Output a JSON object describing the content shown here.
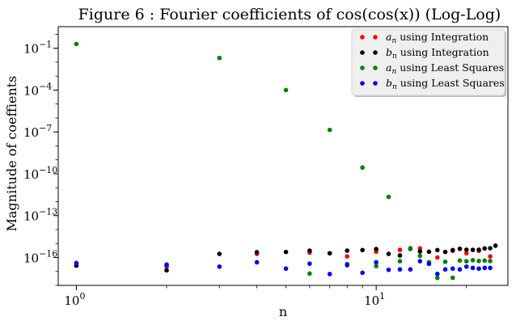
{
  "chart_data": {
    "type": "scatter",
    "title": "Figure 6 : Fourier coefficients of cos(cos(x)) (Log-Log)",
    "xlabel": "n",
    "ylabel": "Magnitude of coeffients",
    "xscale": "log",
    "yscale": "log",
    "xlim": [
      0.87,
      27.5
    ],
    "ylim": [
      1e-18,
      3.5
    ],
    "grid": false,
    "legend_position": "top-right",
    "x_ticks": [
      {
        "value": 1,
        "base": "10",
        "exp": "0"
      },
      {
        "value": 10,
        "base": "10",
        "exp": "1"
      }
    ],
    "y_ticks": [
      {
        "value": 1e-16,
        "base": "10",
        "exp": "−16"
      },
      {
        "value": 1e-13,
        "base": "10",
        "exp": "−13"
      },
      {
        "value": 1e-10,
        "base": "10",
        "exp": "−10"
      },
      {
        "value": 1e-07,
        "base": "10",
        "exp": "−7"
      },
      {
        "value": 0.0001,
        "base": "10",
        "exp": "−4"
      },
      {
        "value": 0.1,
        "base": "10",
        "exp": "−1"
      }
    ],
    "series": [
      {
        "name": "a_n using Integration",
        "legend_var": "a",
        "legend_sub": "n",
        "legend_suffix": " using Integration",
        "color": "#ff0000",
        "x": [
          1,
          2,
          4,
          6,
          8,
          10,
          12,
          14,
          16,
          18,
          20,
          22,
          24
        ],
        "y": [
          2.6e-17,
          2.2e-17,
          1.8e-16,
          2.2e-16,
          1.2e-16,
          2.6e-16,
          3.5e-16,
          4.5e-16,
          1e-16,
          3e-16,
          2e-16,
          3e-16,
          1.2e-16
        ]
      },
      {
        "name": "b_n using Integration",
        "legend_var": "b",
        "legend_sub": "n",
        "legend_suffix": " using Integration",
        "color": "#000000",
        "x": [
          1,
          2,
          3,
          4,
          5,
          6,
          7,
          8,
          9,
          10,
          11,
          12,
          13,
          14,
          15,
          16,
          17,
          18,
          19,
          20,
          21,
          22,
          23,
          24,
          25
        ],
        "y": [
          2.6e-17,
          1.2e-17,
          1.8e-16,
          2.4e-16,
          2.5e-16,
          3.1e-16,
          2e-16,
          3.1e-16,
          3.4e-16,
          4e-16,
          1.8e-16,
          1.4e-16,
          4.2e-16,
          2.7e-16,
          2.6e-16,
          3.4e-16,
          2.5e-16,
          3.4e-16,
          4.2e-16,
          3.6e-16,
          3.5e-16,
          3.6e-16,
          4.5e-16,
          4.6e-16,
          7e-16
        ]
      },
      {
        "name": "a_n using Least Squares",
        "legend_var": "a",
        "legend_sub": "n",
        "legend_suffix": " using Least Squares",
        "color": "#008000",
        "x": [
          1,
          2,
          3,
          5,
          6,
          7,
          8,
          9,
          10,
          11,
          12,
          13,
          14,
          15,
          16,
          17,
          18,
          19,
          20,
          21,
          22,
          23,
          24
        ],
        "y": [
          0.2,
          3.2e-17,
          0.02,
          0.0001,
          7e-18,
          1.4e-07,
          3.4e-17,
          2.8e-10,
          2.4e-17,
          2.2e-12,
          5.4e-17,
          4.6e-16,
          1.3e-16,
          4.6e-17,
          3.4e-18,
          4.9e-17,
          3.5e-18,
          6e-17,
          5.4e-17,
          6.4e-17,
          5.6e-17,
          6e-17,
          5.6e-17
        ]
      },
      {
        "name": "b_n using Least Squares",
        "legend_var": "b",
        "legend_sub": "n",
        "legend_suffix": " using Least Squares",
        "color": "#0000ff",
        "x": [
          1,
          2,
          3,
          4,
          5,
          6,
          7,
          8,
          9,
          10,
          11,
          12,
          13,
          14,
          15,
          16,
          17,
          18,
          19,
          20,
          21,
          22,
          23,
          24
        ],
        "y": [
          4e-17,
          2.8e-17,
          2.2e-17,
          4.5e-17,
          1.6e-17,
          3.6e-17,
          6.5e-18,
          2.8e-17,
          8e-18,
          4.5e-17,
          1.3e-17,
          1.4e-17,
          1.4e-17,
          5.4e-17,
          3.5e-17,
          6.6e-18,
          1.4e-17,
          1.6e-17,
          1.4e-17,
          2.2e-17,
          1.8e-17,
          1.6e-17,
          1.8e-17,
          1.8e-17
        ]
      }
    ]
  }
}
